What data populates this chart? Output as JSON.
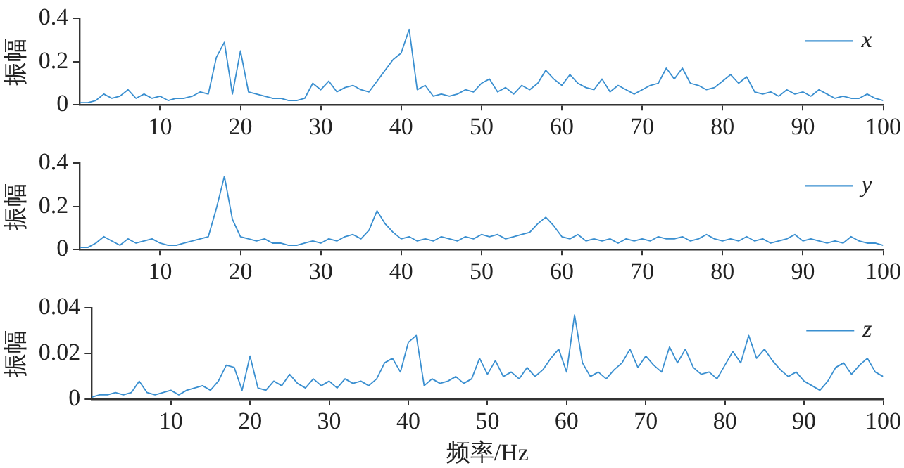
{
  "chart_data": [
    {
      "type": "line",
      "ylabel": "振幅",
      "legend": "top right",
      "grid": false,
      "xlim": [
        0,
        100
      ],
      "xticks": [
        10,
        20,
        30,
        40,
        50,
        60,
        70,
        80,
        90,
        100
      ],
      "ylim": [
        0,
        0.4
      ],
      "yticks": [
        0,
        0.2,
        0.4
      ],
      "x": [
        0,
        1,
        2,
        3,
        4,
        5,
        6,
        7,
        8,
        9,
        10,
        11,
        12,
        13,
        14,
        15,
        16,
        17,
        18,
        19,
        20,
        21,
        22,
        23,
        24,
        25,
        26,
        27,
        28,
        29,
        30,
        31,
        32,
        33,
        34,
        35,
        36,
        37,
        38,
        39,
        40,
        41,
        42,
        43,
        44,
        45,
        46,
        47,
        48,
        49,
        50,
        51,
        52,
        53,
        54,
        55,
        56,
        57,
        58,
        59,
        60,
        61,
        62,
        63,
        64,
        65,
        66,
        67,
        68,
        69,
        70,
        71,
        72,
        73,
        74,
        75,
        76,
        77,
        78,
        79,
        80,
        81,
        82,
        83,
        84,
        85,
        86,
        87,
        88,
        89,
        90,
        91,
        92,
        93,
        94,
        95,
        96,
        97,
        98,
        99,
        100
      ],
      "series": [
        {
          "name": "x",
          "color": "#3a8fd0",
          "values": [
            0.01,
            0.01,
            0.02,
            0.05,
            0.03,
            0.04,
            0.07,
            0.03,
            0.05,
            0.03,
            0.04,
            0.02,
            0.03,
            0.03,
            0.04,
            0.06,
            0.05,
            0.22,
            0.29,
            0.05,
            0.25,
            0.06,
            0.05,
            0.04,
            0.03,
            0.03,
            0.02,
            0.02,
            0.03,
            0.1,
            0.07,
            0.11,
            0.06,
            0.08,
            0.09,
            0.07,
            0.06,
            0.11,
            0.16,
            0.21,
            0.24,
            0.35,
            0.07,
            0.09,
            0.04,
            0.05,
            0.04,
            0.05,
            0.07,
            0.06,
            0.1,
            0.12,
            0.06,
            0.08,
            0.05,
            0.09,
            0.07,
            0.1,
            0.16,
            0.12,
            0.09,
            0.14,
            0.1,
            0.08,
            0.07,
            0.12,
            0.06,
            0.09,
            0.07,
            0.05,
            0.07,
            0.09,
            0.1,
            0.17,
            0.12,
            0.17,
            0.1,
            0.09,
            0.07,
            0.08,
            0.11,
            0.14,
            0.1,
            0.13,
            0.06,
            0.05,
            0.06,
            0.04,
            0.07,
            0.05,
            0.06,
            0.04,
            0.07,
            0.05,
            0.03,
            0.04,
            0.03,
            0.03,
            0.05,
            0.03,
            0.02
          ]
        }
      ]
    },
    {
      "type": "line",
      "ylabel": "振幅",
      "legend": "top right",
      "grid": false,
      "xlim": [
        0,
        100
      ],
      "xticks": [
        10,
        20,
        30,
        40,
        50,
        60,
        70,
        80,
        90,
        100
      ],
      "ylim": [
        0,
        0.4
      ],
      "yticks": [
        0,
        0.2,
        0.4
      ],
      "x": [
        0,
        1,
        2,
        3,
        4,
        5,
        6,
        7,
        8,
        9,
        10,
        11,
        12,
        13,
        14,
        15,
        16,
        17,
        18,
        19,
        20,
        21,
        22,
        23,
        24,
        25,
        26,
        27,
        28,
        29,
        30,
        31,
        32,
        33,
        34,
        35,
        36,
        37,
        38,
        39,
        40,
        41,
        42,
        43,
        44,
        45,
        46,
        47,
        48,
        49,
        50,
        51,
        52,
        53,
        54,
        55,
        56,
        57,
        58,
        59,
        60,
        61,
        62,
        63,
        64,
        65,
        66,
        67,
        68,
        69,
        70,
        71,
        72,
        73,
        74,
        75,
        76,
        77,
        78,
        79,
        80,
        81,
        82,
        83,
        84,
        85,
        86,
        87,
        88,
        89,
        90,
        91,
        92,
        93,
        94,
        95,
        96,
        97,
        98,
        99,
        100
      ],
      "series": [
        {
          "name": "y",
          "color": "#3a8fd0",
          "values": [
            0.01,
            0.01,
            0.03,
            0.06,
            0.04,
            0.02,
            0.05,
            0.03,
            0.04,
            0.05,
            0.03,
            0.02,
            0.02,
            0.03,
            0.04,
            0.05,
            0.06,
            0.19,
            0.34,
            0.14,
            0.06,
            0.05,
            0.04,
            0.05,
            0.03,
            0.03,
            0.02,
            0.02,
            0.03,
            0.04,
            0.03,
            0.05,
            0.04,
            0.06,
            0.07,
            0.05,
            0.09,
            0.18,
            0.12,
            0.08,
            0.05,
            0.06,
            0.04,
            0.05,
            0.04,
            0.06,
            0.05,
            0.04,
            0.06,
            0.05,
            0.07,
            0.06,
            0.07,
            0.05,
            0.06,
            0.07,
            0.08,
            0.12,
            0.15,
            0.11,
            0.06,
            0.05,
            0.07,
            0.04,
            0.05,
            0.04,
            0.05,
            0.03,
            0.05,
            0.04,
            0.05,
            0.04,
            0.06,
            0.05,
            0.05,
            0.06,
            0.04,
            0.05,
            0.07,
            0.05,
            0.04,
            0.05,
            0.04,
            0.06,
            0.04,
            0.05,
            0.03,
            0.04,
            0.05,
            0.07,
            0.04,
            0.05,
            0.04,
            0.03,
            0.04,
            0.03,
            0.06,
            0.04,
            0.03,
            0.03,
            0.02
          ]
        }
      ]
    },
    {
      "type": "line",
      "ylabel": "振幅",
      "xlabel": "频率/Hz",
      "legend": "top right",
      "grid": false,
      "xlim": [
        0,
        100
      ],
      "xticks": [
        10,
        20,
        30,
        40,
        50,
        60,
        70,
        80,
        90,
        100
      ],
      "ylim": [
        0,
        0.04
      ],
      "yticks": [
        0,
        0.02,
        0.04
      ],
      "x": [
        0,
        1,
        2,
        3,
        4,
        5,
        6,
        7,
        8,
        9,
        10,
        11,
        12,
        13,
        14,
        15,
        16,
        17,
        18,
        19,
        20,
        21,
        22,
        23,
        24,
        25,
        26,
        27,
        28,
        29,
        30,
        31,
        32,
        33,
        34,
        35,
        36,
        37,
        38,
        39,
        40,
        41,
        42,
        43,
        44,
        45,
        46,
        47,
        48,
        49,
        50,
        51,
        52,
        53,
        54,
        55,
        56,
        57,
        58,
        59,
        60,
        61,
        62,
        63,
        64,
        65,
        66,
        67,
        68,
        69,
        70,
        71,
        72,
        73,
        74,
        75,
        76,
        77,
        78,
        79,
        80,
        81,
        82,
        83,
        84,
        85,
        86,
        87,
        88,
        89,
        90,
        91,
        92,
        93,
        94,
        95,
        96,
        97,
        98,
        99,
        100
      ],
      "series": [
        {
          "name": "z",
          "color": "#3a8fd0",
          "values": [
            0.001,
            0.002,
            0.002,
            0.003,
            0.002,
            0.003,
            0.008,
            0.003,
            0.002,
            0.003,
            0.004,
            0.002,
            0.004,
            0.005,
            0.006,
            0.004,
            0.008,
            0.015,
            0.014,
            0.004,
            0.019,
            0.005,
            0.004,
            0.008,
            0.006,
            0.011,
            0.007,
            0.005,
            0.009,
            0.006,
            0.008,
            0.005,
            0.009,
            0.007,
            0.008,
            0.006,
            0.009,
            0.016,
            0.018,
            0.012,
            0.025,
            0.028,
            0.006,
            0.009,
            0.007,
            0.008,
            0.01,
            0.007,
            0.009,
            0.018,
            0.011,
            0.017,
            0.01,
            0.012,
            0.009,
            0.014,
            0.01,
            0.013,
            0.018,
            0.022,
            0.012,
            0.037,
            0.016,
            0.01,
            0.012,
            0.009,
            0.013,
            0.016,
            0.022,
            0.014,
            0.019,
            0.015,
            0.012,
            0.023,
            0.016,
            0.022,
            0.014,
            0.011,
            0.012,
            0.009,
            0.015,
            0.021,
            0.016,
            0.028,
            0.018,
            0.022,
            0.017,
            0.013,
            0.01,
            0.012,
            0.008,
            0.006,
            0.004,
            0.008,
            0.014,
            0.016,
            0.011,
            0.015,
            0.018,
            0.012,
            0.01
          ]
        }
      ]
    }
  ]
}
